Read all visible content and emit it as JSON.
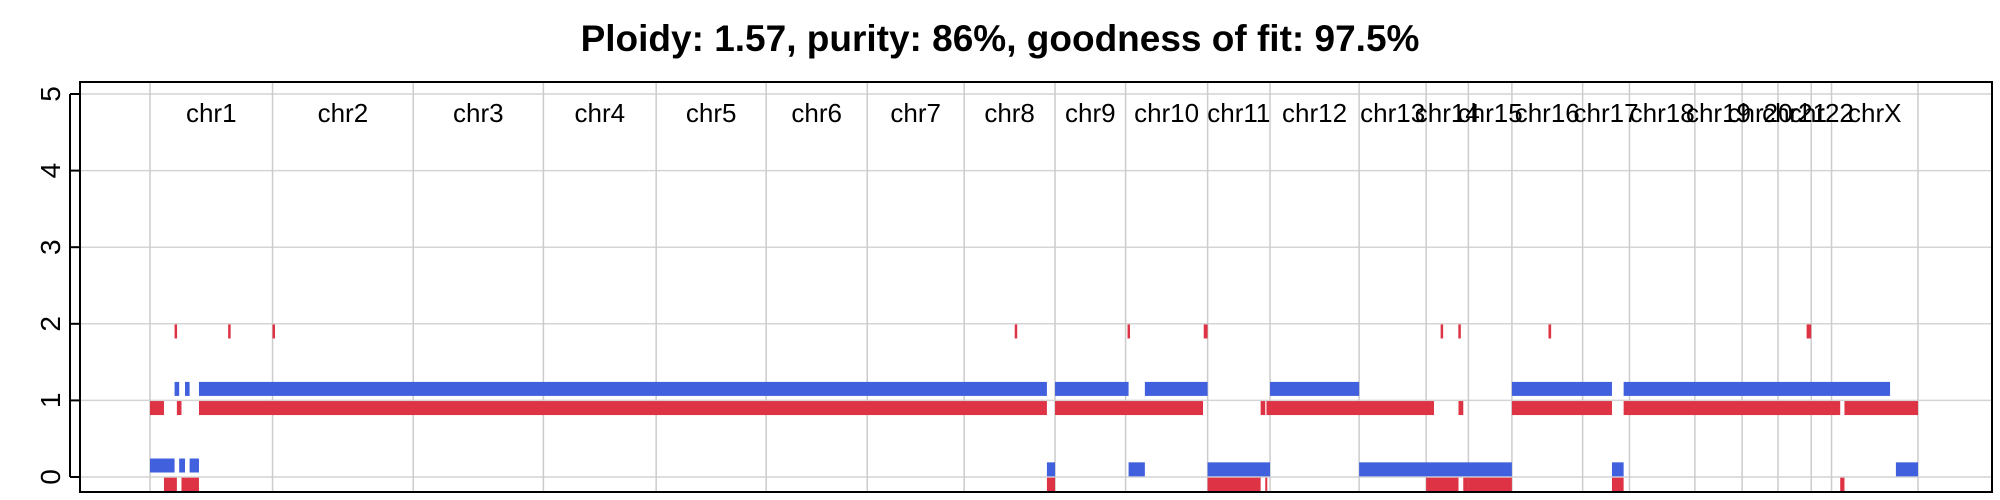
{
  "chart_data": {
    "type": "bar",
    "title": "Ploidy: 1.57, purity: 86%, goodness of fit: 97.5%",
    "xlabel": "",
    "ylabel": "",
    "ylim": [
      0,
      5
    ],
    "yticks": [
      "0",
      "1",
      "2",
      "3",
      "4",
      "5"
    ],
    "grid": true,
    "chromosomes": [
      "chr1",
      "chr2",
      "chr3",
      "chr4",
      "chr5",
      "chr6",
      "chr7",
      "chr8",
      "chr9",
      "chr10",
      "chr11",
      "chr12",
      "chr13",
      "chr14",
      "chr15",
      "chr16",
      "chr17",
      "chr18",
      "chr19",
      "chr20",
      "chr21",
      "chr22",
      "chrX"
    ],
    "boundaries": [
      0,
      0.0693,
      0.1489,
      0.2225,
      0.2863,
      0.3485,
      0.4057,
      0.4605,
      0.5119,
      0.5518,
      0.5982,
      0.6335,
      0.6839,
      0.7218,
      0.7457,
      0.7703,
      0.8103,
      0.8368,
      0.8738,
      0.9005,
      0.9208,
      0.9396,
      0.9511,
      1.0
    ],
    "series": [
      {
        "color": "#4060dd",
        "segments": [
          [
            0,
            0.0139,
            0.15
          ],
          [
            0.0139,
            0.0165,
            1.15
          ],
          [
            0.0165,
            0.0198,
            0.15
          ],
          [
            0.0198,
            0.0224,
            1.15
          ],
          [
            0.0224,
            0.0277,
            0.15
          ],
          [
            0.0277,
            0.5073,
            1.15
          ],
          [
            0.5073,
            0.5119,
            0.1
          ],
          [
            0.5119,
            0.5535,
            1.15
          ],
          [
            0.5535,
            0.5627,
            0.1
          ],
          [
            0.5627,
            0.5982,
            1.15
          ],
          [
            0.5982,
            0.6335,
            0.1
          ],
          [
            0.6335,
            0.6839,
            1.15
          ],
          [
            0.6839,
            0.7703,
            0.1
          ],
          [
            0.7703,
            0.8269,
            1.15
          ],
          [
            0.8269,
            0.8335,
            0.1
          ],
          [
            0.8335,
            0.9842,
            1.15
          ],
          [
            0.9875,
            1.0,
            0.1
          ]
        ]
      },
      {
        "color": "#dd3344",
        "segments": [
          [
            0,
            0.0079,
            0.9
          ],
          [
            0.0079,
            0.0152,
            -0.1
          ],
          [
            0.0152,
            0.0178,
            0.9
          ],
          [
            0.0178,
            0.0277,
            -0.1
          ],
          [
            0.0277,
            0.5073,
            0.9
          ],
          [
            0.5073,
            0.5119,
            -0.1
          ],
          [
            0.5119,
            0.5956,
            0.9
          ],
          [
            0.5982,
            0.6282,
            -0.1
          ],
          [
            0.6282,
            0.6308,
            0.9
          ],
          [
            0.6308,
            0.6315,
            -0.1
          ],
          [
            0.6315,
            0.7251,
            0.9
          ],
          [
            0.7251,
            0.7262,
            0.9
          ],
          [
            0.7218,
            0.7401,
            -0.1
          ],
          [
            0.7401,
            0.7428,
            0.9
          ],
          [
            0.7428,
            0.7457,
            -0.1
          ],
          [
            0.7457,
            0.7703,
            -0.1
          ],
          [
            0.7703,
            0.8269,
            0.9
          ],
          [
            0.8269,
            0.8335,
            -0.1
          ],
          [
            0.8335,
            0.9511,
            0.9
          ],
          [
            0.9511,
            0.956,
            0.9
          ],
          [
            0.956,
            0.9584,
            -0.1
          ],
          [
            0.9584,
            1.0,
            0.9
          ]
        ],
        "ticks": [
          [
            0.0139,
            0.015,
            1.9
          ],
          [
            0.0442,
            0.0454,
            1.9
          ],
          [
            0.0693,
            0.07,
            1.9
          ],
          [
            0.4891,
            0.49,
            1.9
          ],
          [
            0.5529,
            0.5536,
            1.9
          ],
          [
            0.596,
            0.5982,
            1.9
          ],
          [
            0.73,
            0.731,
            1.9
          ],
          [
            0.74,
            0.741,
            1.9
          ],
          [
            0.791,
            0.7925,
            1.9
          ],
          [
            0.937,
            0.9396,
            1.9
          ]
        ]
      }
    ]
  }
}
